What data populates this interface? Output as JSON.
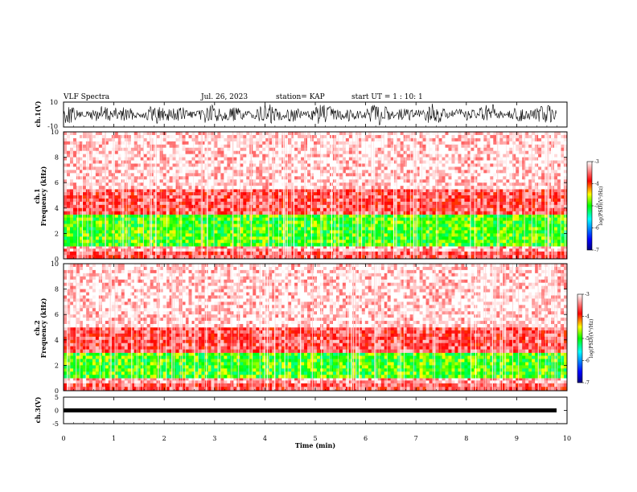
{
  "header": {
    "title": "VLF Spectra",
    "date": "Jul. 26, 2023",
    "station": "station= KAP",
    "start": "start  UT =   1 : 10: 1"
  },
  "chart_data": [
    {
      "type": "line",
      "name": "ch1-waveform",
      "ylabel": "ch.1(V)",
      "ylim": [
        -10,
        10
      ],
      "yticks": [
        "10",
        "-10"
      ],
      "xlim": [
        0,
        10
      ]
    },
    {
      "type": "heatmap",
      "name": "ch1-spectrogram",
      "ylabel_line1": "ch.1",
      "ylabel_line2": "Frequency (kHz)",
      "ylim": [
        0,
        10
      ],
      "yticks": [
        "0",
        "2",
        "4",
        "6",
        "8",
        "10"
      ],
      "xlim": [
        0,
        10
      ],
      "colorbar": {
        "label": "log(PSD)(V²/Hz)",
        "ticks": [
          "-3",
          "-4",
          "-5",
          "-6",
          "-7"
        ],
        "range": [
          -7,
          -3
        ]
      },
      "bands": [
        {
          "from_khz": 0.0,
          "to_khz": 0.6,
          "level": -3.6
        },
        {
          "from_khz": 0.6,
          "to_khz": 1.0,
          "level": -3.3
        },
        {
          "from_khz": 1.0,
          "to_khz": 3.5,
          "level": -4.9
        },
        {
          "from_khz": 3.5,
          "to_khz": 5.5,
          "level": -3.6
        },
        {
          "from_khz": 5.5,
          "to_khz": 10.0,
          "level": -3.1
        }
      ]
    },
    {
      "type": "heatmap",
      "name": "ch2-spectrogram",
      "ylabel_line1": "ch.2",
      "ylabel_line2": "Frequency (kHz)",
      "ylim": [
        0,
        10
      ],
      "yticks": [
        "0",
        "2",
        "4",
        "6",
        "8",
        "10"
      ],
      "xlim": [
        0,
        10
      ],
      "colorbar": {
        "label": "log(PSD)(V²/Hz)",
        "ticks": [
          "-3",
          "-4",
          "-5",
          "-6",
          "-7"
        ],
        "range": [
          -7,
          -3
        ]
      },
      "bands": [
        {
          "from_khz": 0.0,
          "to_khz": 0.6,
          "level": -3.6
        },
        {
          "from_khz": 0.6,
          "to_khz": 1.0,
          "level": -3.3
        },
        {
          "from_khz": 1.0,
          "to_khz": 3.0,
          "level": -4.9
        },
        {
          "from_khz": 3.0,
          "to_khz": 5.0,
          "level": -3.6
        },
        {
          "from_khz": 5.0,
          "to_khz": 10.0,
          "level": -3.1
        }
      ]
    },
    {
      "type": "line",
      "name": "ch3-waveform",
      "ylabel": "ch.3(V)",
      "ylim": [
        -5,
        5
      ],
      "yticks": [
        "5",
        "0",
        "-5"
      ],
      "xlim": [
        0,
        10
      ],
      "xlabel": "Time (min)",
      "xticks": [
        "0",
        "1",
        "2",
        "3",
        "4",
        "5",
        "6",
        "7",
        "8",
        "9",
        "10"
      ]
    }
  ]
}
